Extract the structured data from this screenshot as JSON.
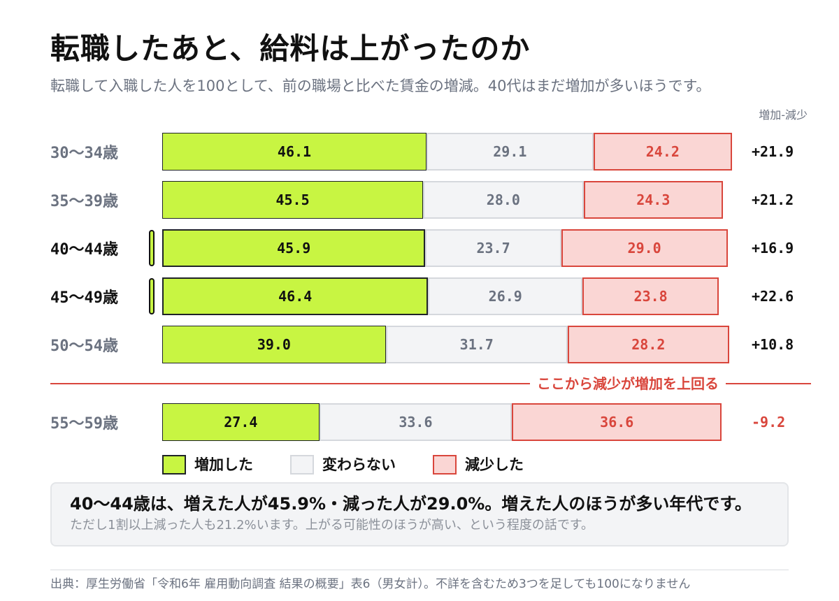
{
  "chart_data": {
    "type": "bar",
    "orientation": "horizontal",
    "stacked": true,
    "title": "転職したあと、給料は上がったのか",
    "subtitle": "転職して入職した人を100として、前の職場と比べた賃金の増減。40代はまだ増加が多いほうです。",
    "xlabel": "",
    "ylabel": "",
    "xlim": [
      0,
      100
    ],
    "grid": false,
    "legend_position": "bottom-left",
    "categories": [
      "30〜34歳",
      "35〜39歳",
      "40〜44歳",
      "45〜49歳",
      "50〜54歳",
      "55〜59歳"
    ],
    "series": [
      {
        "name": "増加した",
        "color": "#c8f542",
        "border": "#1f2328",
        "text_color": "#111111",
        "values": [
          46.1,
          45.5,
          45.9,
          46.4,
          39.0,
          27.4
        ]
      },
      {
        "name": "変わらない",
        "color": "#f3f4f6",
        "border": "#d5d8dd",
        "text_color": "#6b7280",
        "values": [
          29.1,
          28.0,
          23.7,
          26.9,
          31.7,
          33.6
        ]
      },
      {
        "name": "減少した",
        "color": "#fad6d4",
        "border": "#d9463c",
        "text_color": "#d9463c",
        "values": [
          24.2,
          24.3,
          29.0,
          23.8,
          28.2,
          36.6
        ]
      }
    ],
    "net_header": "増加-減少",
    "net": [
      21.9,
      21.2,
      16.9,
      22.6,
      10.8,
      -9.2
    ],
    "highlight": [
      false,
      false,
      true,
      true,
      false,
      false
    ],
    "divider_label": "ここから減少が増加を上回る"
  },
  "callout": {
    "headline": "40〜44歳は、増えた人が45.9%・減った人が29.0%。増えた人のほうが多い年代です。",
    "note": "ただし1割以上減った人も21.2%います。上がる可能性のほうが高い、という程度の話です。"
  },
  "source": "出典：厚生労働省「令和6年 雇用動向調査 結果の概要」表6（男女計）。不詳を含むため3つを足しても100になりません"
}
